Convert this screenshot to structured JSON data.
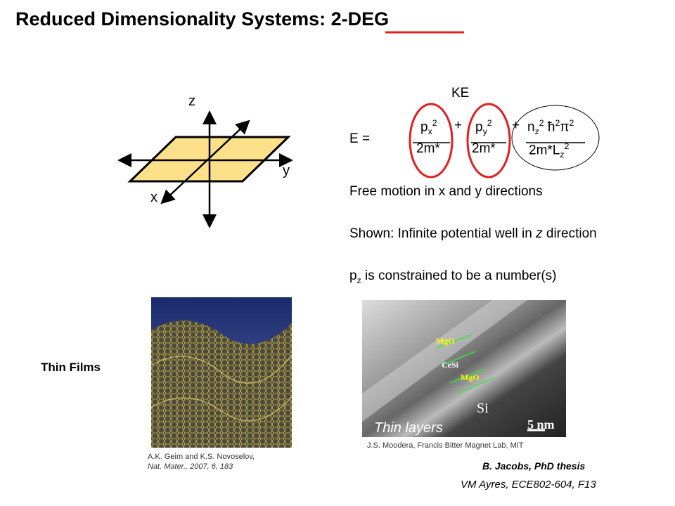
{
  "header": {
    "title": "Reduced Dimensionality Systems: 2-DEG"
  },
  "diagram": {
    "axes": {
      "z": "z",
      "y": "y",
      "x": "x"
    }
  },
  "equation": {
    "label": "KE",
    "lhs": "E =",
    "terms": [
      {
        "numerator": [
          {
            "text": "p"
          },
          {
            "text": "x",
            "script": "sub"
          },
          {
            "text": "2",
            "script": "sup"
          }
        ],
        "denominator": [
          {
            "text": "2m*"
          }
        ],
        "operator": "+"
      },
      {
        "numerator": [
          {
            "text": "p"
          },
          {
            "text": "y",
            "script": "sub"
          },
          {
            "text": "2",
            "script": "sup"
          }
        ],
        "denominator": [
          {
            "text": "2m*"
          }
        ],
        "operator": "+"
      },
      {
        "numerator": [
          {
            "text": "n"
          },
          {
            "text": "z",
            "script": "sub"
          },
          {
            "text": "2",
            "script": "sup"
          },
          {
            "text": " ħ"
          },
          {
            "text": "2",
            "script": "sup"
          },
          {
            "text": "π"
          },
          {
            "text": "2",
            "script": "sup"
          }
        ],
        "denominator": [
          {
            "text": "2m*L"
          },
          {
            "text": "z",
            "script": "sub"
          },
          {
            "text": "2",
            "script": "sup"
          }
        ]
      }
    ]
  },
  "statements": [
    [
      {
        "text": "Free motion in x and y directions"
      }
    ],
    [
      {
        "text": "Shown: Infinite potential well in "
      },
      {
        "text": "z",
        "style": "italic"
      },
      {
        "text": " direction"
      }
    ],
    [
      {
        "text": "p"
      },
      {
        "text": "z",
        "script": "sub"
      },
      {
        "text": " is constrained to be a number(s)"
      }
    ]
  ],
  "thin_films": {
    "label": "Thin Films",
    "caption": [
      "A.K. Geim and K.S. Novoselov,",
      "Nat. Mater., 2007, 6, 183"
    ]
  },
  "thin_layers": {
    "label": "Thin layers",
    "image_labels": [
      "MgO",
      "CeSi",
      "MgO",
      "Si",
      "5 nm"
    ],
    "caption": "J.S. Moodera, Francis Bitter Magnet Lab, MIT"
  },
  "footer": {
    "credit": "B. Jacobs, PhD thesis",
    "course": "VM Ayres, ECE802-604, F13"
  }
}
